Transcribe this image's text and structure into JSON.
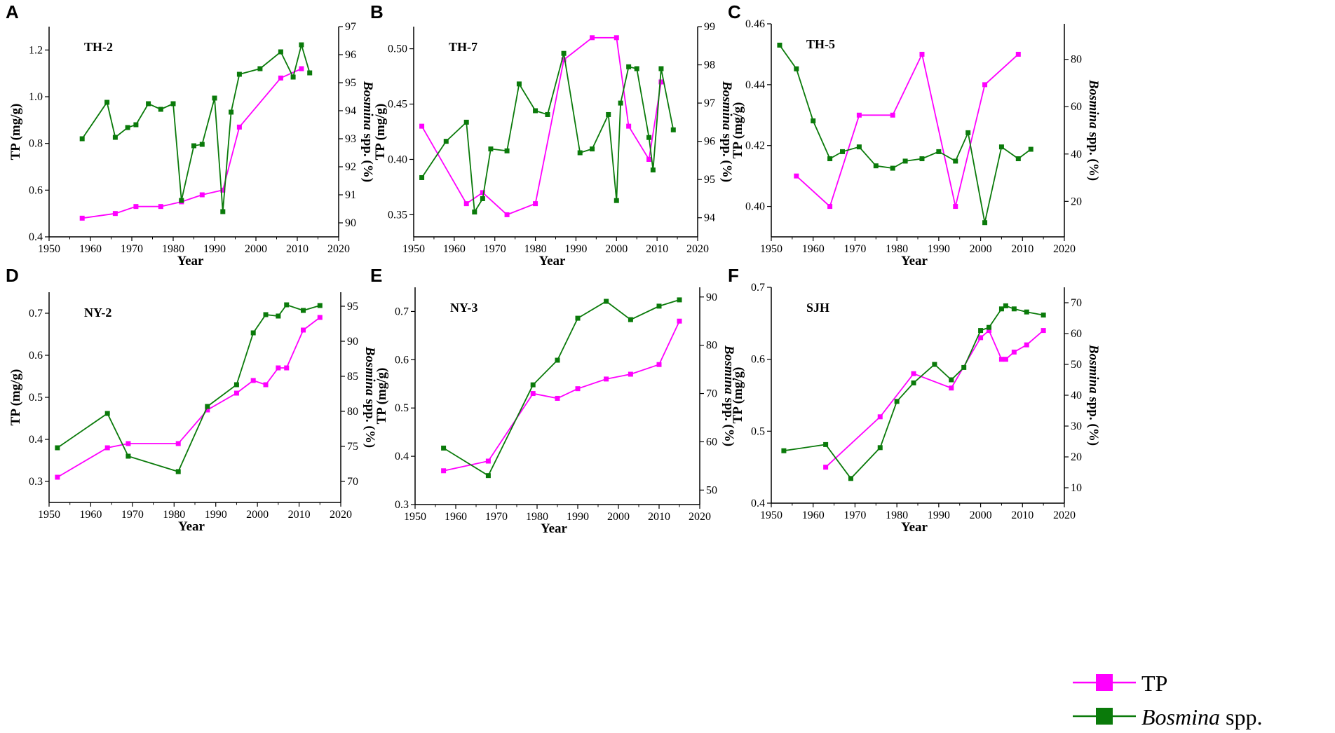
{
  "colors": {
    "tp": "#ff00ff",
    "bosmina": "#0a7a0a",
    "axis": "#000000"
  },
  "legend": {
    "tp_label": "TP",
    "bosmina_italic": "Bosmina",
    "bosmina_rest": " spp."
  },
  "chart_data": [
    {
      "type": "line",
      "panel": "A",
      "site": "TH-2",
      "xlabel": "Year",
      "ylabel_left": "TP (mg/g)",
      "ylabel_right_italic": "Bosmina",
      "ylabel_right_rest": " spp. (%)",
      "xlim": [
        1950,
        2020
      ],
      "xticks": [
        1950,
        1960,
        1970,
        1980,
        1990,
        2000,
        2010,
        2020
      ],
      "ylim_left": [
        0.4,
        1.3
      ],
      "yticks_left": [
        "0.4",
        "0.6",
        "0.8",
        "1.0",
        "1.2"
      ],
      "ylim_right": [
        89.5,
        97
      ],
      "yticks_right": [
        "90",
        "91",
        "92",
        "93",
        "94",
        "95",
        "96",
        "97"
      ],
      "series": [
        {
          "name": "TP",
          "axis": "left",
          "x": [
            1958,
            1966,
            1971,
            1977,
            1982,
            1987,
            1992,
            1996,
            2006,
            2011
          ],
          "y": [
            0.48,
            0.5,
            0.53,
            0.53,
            0.55,
            0.58,
            0.6,
            0.87,
            1.08,
            1.12
          ]
        },
        {
          "name": "Bosmina spp.",
          "axis": "right",
          "x": [
            1958,
            1964,
            1966,
            1969,
            1971,
            1974,
            1977,
            1980,
            1982,
            1985,
            1987,
            1990,
            1992,
            1994,
            1996,
            2001,
            2006,
            2009,
            2011,
            2013
          ],
          "y": [
            93.0,
            94.3,
            93.05,
            93.4,
            93.5,
            94.25,
            94.05,
            94.25,
            90.8,
            92.75,
            92.8,
            94.45,
            90.4,
            93.95,
            95.3,
            95.5,
            96.1,
            95.2,
            96.35,
            95.35
          ]
        }
      ]
    },
    {
      "type": "line",
      "panel": "B",
      "site": "TH-7",
      "xlabel": "Year",
      "ylabel_left": "TP (mg/g)",
      "ylabel_right_italic": "Bosmina",
      "ylabel_right_rest": " spp. (%)",
      "xlim": [
        1950,
        2020
      ],
      "xticks": [
        1950,
        1960,
        1970,
        1980,
        1990,
        2000,
        2010,
        2020
      ],
      "ylim_left": [
        0.33,
        0.52
      ],
      "yticks_left": [
        "0.35",
        "0.40",
        "0.45",
        "0.50"
      ],
      "ylim_right": [
        93.5,
        99
      ],
      "yticks_right": [
        "94",
        "95",
        "96",
        "97",
        "98",
        "99"
      ],
      "series": [
        {
          "name": "TP",
          "axis": "left",
          "x": [
            1952,
            1963,
            1967,
            1973,
            1980,
            1987,
            1994,
            2000,
            2003,
            2008,
            2011
          ],
          "y": [
            0.43,
            0.36,
            0.37,
            0.35,
            0.36,
            0.49,
            0.51,
            0.51,
            0.43,
            0.4,
            0.47
          ]
        },
        {
          "name": "Bosmina spp.",
          "axis": "right",
          "x": [
            1952,
            1958,
            1963,
            1965,
            1967,
            1969,
            1973,
            1976,
            1980,
            1983,
            1987,
            1991,
            1994,
            1998,
            2000,
            2001,
            2003,
            2005,
            2008,
            2009,
            2011,
            2014
          ],
          "y": [
            95.05,
            96.0,
            96.5,
            94.15,
            94.5,
            95.8,
            95.75,
            97.5,
            96.8,
            96.7,
            98.3,
            95.7,
            95.8,
            96.7,
            94.45,
            97.0,
            97.95,
            97.9,
            96.1,
            95.25,
            97.9,
            96.3
          ]
        }
      ]
    },
    {
      "type": "line",
      "panel": "C",
      "site": "TH-5",
      "xlabel": "Year",
      "ylabel_left": "TP (mg/g)",
      "ylabel_right_italic": "Bosmina",
      "ylabel_right_rest": " spp. (%)",
      "xlim": [
        1950,
        2020
      ],
      "xticks": [
        1950,
        1960,
        1970,
        1980,
        1990,
        2000,
        2010,
        2020
      ],
      "ylim_left": [
        0.39,
        0.46
      ],
      "yticks_left": [
        "0.40",
        "0.42",
        "0.44",
        "0.46"
      ],
      "ylim_right": [
        5,
        95
      ],
      "yticks_right": [
        "20",
        "40",
        "60",
        "80"
      ],
      "series": [
        {
          "name": "TP",
          "axis": "left",
          "x": [
            1956,
            1964,
            1971,
            1979,
            1986,
            1994,
            2001,
            2009
          ],
          "y": [
            0.41,
            0.4,
            0.43,
            0.43,
            0.45,
            0.4,
            0.44,
            0.45
          ]
        },
        {
          "name": "Bosmina spp.",
          "axis": "right",
          "x": [
            1952,
            1956,
            1960,
            1964,
            1967,
            1971,
            1975,
            1979,
            1982,
            1986,
            1990,
            1994,
            1997,
            2001,
            2005,
            2009,
            2012
          ],
          "y": [
            86,
            76,
            54,
            38,
            41,
            43,
            35,
            34,
            37,
            38,
            41,
            37,
            49,
            11,
            43,
            38,
            42
          ]
        }
      ]
    },
    {
      "type": "line",
      "panel": "D",
      "site": "NY-2",
      "xlabel": "Year",
      "ylabel_left": "TP (mg/g)",
      "ylabel_right_italic": "Bosmina",
      "ylabel_right_rest": " spp. (%)",
      "xlim": [
        1950,
        2020
      ],
      "xticks": [
        1950,
        1960,
        1970,
        1980,
        1990,
        2000,
        2010,
        2020
      ],
      "ylim_left": [
        0.25,
        0.75
      ],
      "yticks_left": [
        "0.3",
        "0.4",
        "0.5",
        "0.6",
        "0.7"
      ],
      "ylim_right": [
        67,
        97
      ],
      "yticks_right": [
        "70",
        "75",
        "80",
        "85",
        "90",
        "95"
      ],
      "series": [
        {
          "name": "TP",
          "axis": "left",
          "x": [
            1952,
            1964,
            1969,
            1981,
            1988,
            1995,
            1999,
            2002,
            2005,
            2007,
            2011,
            2015
          ],
          "y": [
            0.31,
            0.38,
            0.39,
            0.39,
            0.47,
            0.51,
            0.54,
            0.53,
            0.57,
            0.57,
            0.66,
            0.69
          ]
        },
        {
          "name": "Bosmina spp.",
          "axis": "right",
          "x": [
            1952,
            1964,
            1969,
            1981,
            1988,
            1995,
            1999,
            2002,
            2005,
            2007,
            2011,
            2015
          ],
          "y": [
            74.8,
            79.7,
            73.6,
            71.4,
            80.7,
            83.8,
            91.2,
            93.8,
            93.6,
            95.2,
            94.4,
            95.1
          ]
        }
      ]
    },
    {
      "type": "line",
      "panel": "E",
      "site": "NY-3",
      "xlabel": "Year",
      "ylabel_left": "TP (mg/g)",
      "ylabel_right_italic": "Bosmina",
      "ylabel_right_rest": " spp. (%)",
      "xlim": [
        1950,
        2020
      ],
      "xticks": [
        1950,
        1960,
        1970,
        1980,
        1990,
        2000,
        2010,
        2020
      ],
      "ylim_left": [
        0.3,
        0.75
      ],
      "yticks_left": [
        "0.3",
        "0.4",
        "0.5",
        "0.6",
        "0.7"
      ],
      "ylim_right": [
        47,
        92
      ],
      "yticks_right": [
        "50",
        "60",
        "70",
        "80",
        "90"
      ],
      "series": [
        {
          "name": "TP",
          "axis": "left",
          "x": [
            1957,
            1968,
            1979,
            1985,
            1990,
            1997,
            2003,
            2010,
            2015
          ],
          "y": [
            0.37,
            0.39,
            0.53,
            0.52,
            0.54,
            0.56,
            0.57,
            0.59,
            0.68
          ]
        },
        {
          "name": "Bosmina spp.",
          "axis": "right",
          "x": [
            1957,
            1968,
            1979,
            1985,
            1990,
            1997,
            2003,
            2010,
            2015
          ],
          "y": [
            58.7,
            53.0,
            71.8,
            76.9,
            85.6,
            89.1,
            85.3,
            88.1,
            89.4
          ]
        }
      ]
    },
    {
      "type": "line",
      "panel": "F",
      "site": "SJH",
      "xlabel": "Year",
      "ylabel_left": "TP (mg/g)",
      "ylabel_right_italic": "Bosmina",
      "ylabel_right_rest": " spp. (%)",
      "xlim": [
        1950,
        2020
      ],
      "xticks": [
        1950,
        1960,
        1970,
        1980,
        1990,
        2000,
        2010,
        2020
      ],
      "ylim_left": [
        0.4,
        0.7
      ],
      "yticks_left": [
        "0.4",
        "0.5",
        "0.6",
        "0.7"
      ],
      "ylim_right": [
        5,
        75
      ],
      "yticks_right": [
        "10",
        "20",
        "30",
        "40",
        "50",
        "60",
        "70"
      ],
      "series": [
        {
          "name": "TP",
          "axis": "left",
          "x": [
            1963,
            1976,
            1984,
            1993,
            2000,
            2002,
            2005,
            2006,
            2008,
            2011,
            2015
          ],
          "y": [
            0.45,
            0.52,
            0.58,
            0.56,
            0.63,
            0.64,
            0.6,
            0.6,
            0.61,
            0.62,
            0.64
          ]
        },
        {
          "name": "Bosmina spp.",
          "axis": "right",
          "x": [
            1953,
            1963,
            1969,
            1976,
            1980,
            1984,
            1989,
            1993,
            1996,
            2000,
            2002,
            2005,
            2006,
            2008,
            2011,
            2015
          ],
          "y": [
            22,
            24,
            13,
            23,
            38,
            44,
            50,
            45,
            49,
            61,
            62,
            68,
            69,
            68,
            67,
            66
          ]
        }
      ]
    }
  ]
}
